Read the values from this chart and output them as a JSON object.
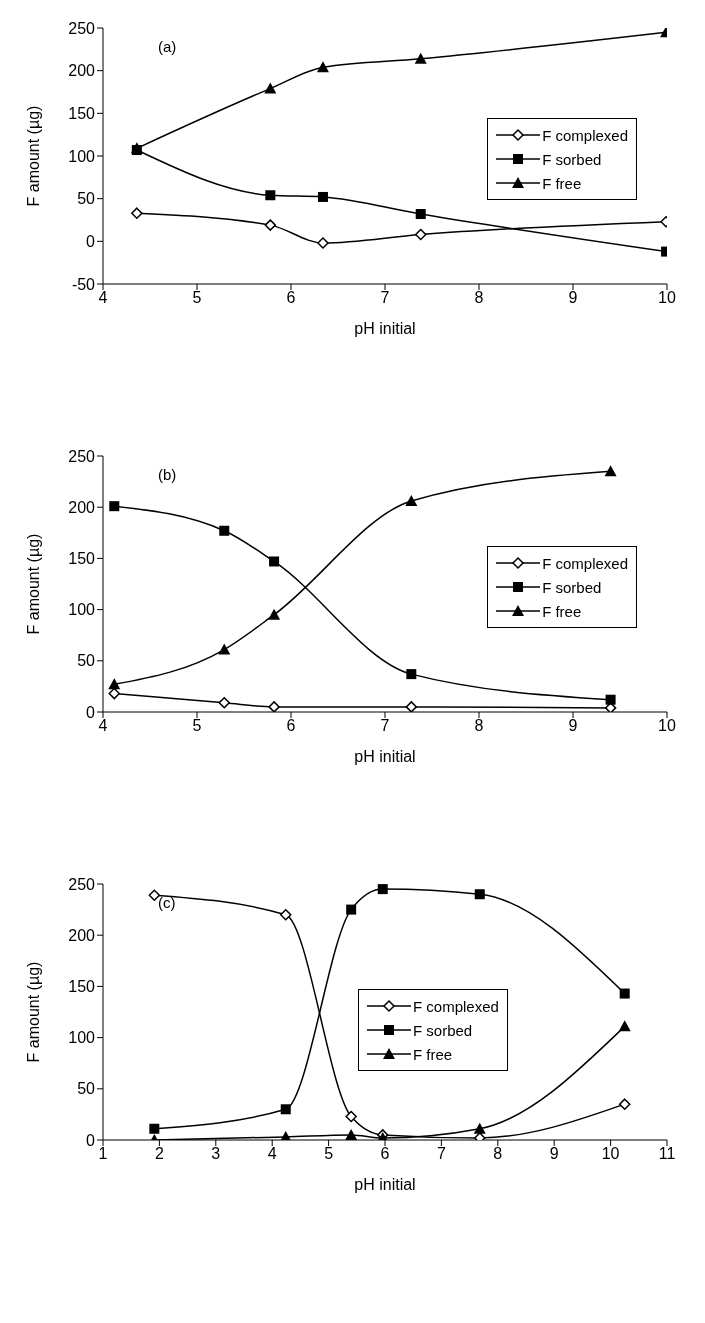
{
  "chart_data": [
    {
      "type": "line",
      "xlabel": "pH initial",
      "ylabel": "F amount (µg)",
      "annotations": [
        "(a)"
      ],
      "xlim": [
        4,
        10
      ],
      "xticks": [
        4,
        5,
        6,
        7,
        8,
        9,
        10
      ],
      "ylim": [
        -50,
        250
      ],
      "yticks": [
        -50,
        0,
        50,
        100,
        150,
        200,
        250
      ],
      "grid": false,
      "legend": "right",
      "line_style": "solid",
      "series": [
        {
          "name": "F complexed",
          "color": "#000000",
          "marker": "diamond",
          "x": [
            4.36,
            5.78,
            6.34,
            7.38,
            9.99
          ],
          "values": [
            33,
            19,
            -2,
            8,
            23
          ]
        },
        {
          "name": "F sorbed",
          "color": "#000000",
          "marker": "square",
          "x": [
            4.36,
            5.78,
            6.34,
            7.38,
            9.99
          ],
          "values": [
            107,
            54,
            52,
            32,
            -12
          ]
        },
        {
          "name": "F free",
          "color": "#000000",
          "marker": "triangle",
          "x": [
            4.36,
            5.78,
            6.34,
            7.38,
            9.99
          ],
          "values": [
            109,
            179,
            204,
            214,
            245
          ]
        }
      ]
    },
    {
      "type": "line",
      "xlabel": "pH initial",
      "ylabel": "F amount (µg)",
      "annotations": [
        "(b)"
      ],
      "xlim": [
        4,
        10
      ],
      "xticks": [
        4,
        5,
        6,
        7,
        8,
        9,
        10
      ],
      "ylim": [
        0,
        250
      ],
      "yticks": [
        0,
        50,
        100,
        150,
        200,
        250
      ],
      "grid": false,
      "legend": "right",
      "line_style": "solid",
      "series": [
        {
          "name": "F complexed",
          "color": "#000000",
          "marker": "diamond",
          "x": [
            4.12,
            5.29,
            5.82,
            7.28,
            9.4
          ],
          "values": [
            18,
            9,
            5,
            5,
            4
          ]
        },
        {
          "name": "F sorbed",
          "color": "#000000",
          "marker": "square",
          "x": [
            4.12,
            5.29,
            5.82,
            7.28,
            9.4
          ],
          "values": [
            201,
            177,
            147,
            37,
            12
          ]
        },
        {
          "name": "F free",
          "color": "#000000",
          "marker": "triangle",
          "x": [
            4.12,
            5.29,
            5.82,
            7.28,
            9.4
          ],
          "values": [
            27,
            61,
            95,
            206,
            235
          ]
        }
      ]
    },
    {
      "type": "line",
      "xlabel": "pH initial",
      "ylabel": "F amount (µg)",
      "annotations": [
        "(c)"
      ],
      "xlim": [
        1,
        11
      ],
      "xticks": [
        1,
        2,
        3,
        4,
        5,
        6,
        7,
        8,
        9,
        10,
        11
      ],
      "ylim": [
        0,
        250
      ],
      "yticks": [
        0,
        50,
        100,
        150,
        200,
        250
      ],
      "grid": false,
      "legend": "center",
      "line_style": "solid",
      "series": [
        {
          "name": "F complexed",
          "color": "#000000",
          "marker": "diamond",
          "x": [
            1.91,
            4.24,
            5.4,
            5.96,
            7.68,
            10.25
          ],
          "values": [
            239,
            220,
            23,
            5,
            2,
            35
          ]
        },
        {
          "name": "F sorbed",
          "color": "#000000",
          "marker": "square",
          "x": [
            1.91,
            4.24,
            5.4,
            5.96,
            7.68,
            10.25
          ],
          "values": [
            11,
            30,
            225,
            245,
            240,
            143
          ]
        },
        {
          "name": "F free",
          "color": "#000000",
          "marker": "triangle",
          "x": [
            1.91,
            4.24,
            5.4,
            5.96,
            7.68,
            10.25
          ],
          "values": [
            0,
            3,
            5,
            2,
            11,
            111
          ]
        }
      ]
    }
  ]
}
